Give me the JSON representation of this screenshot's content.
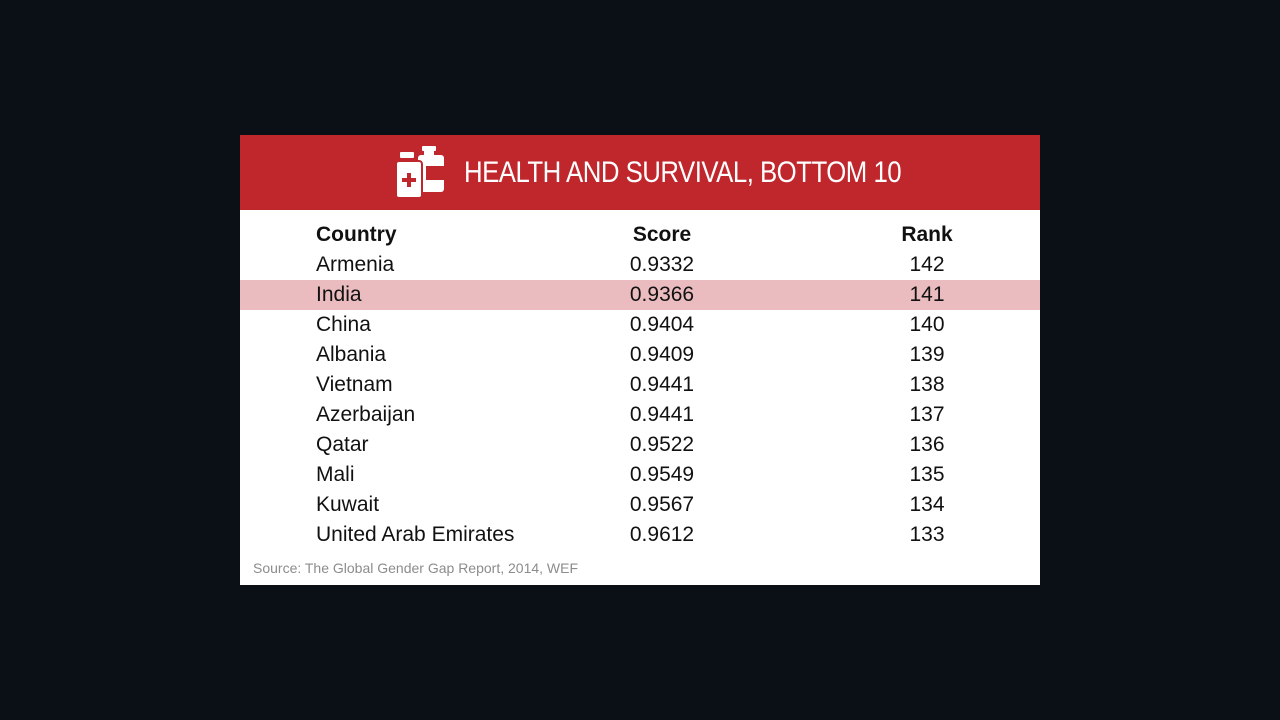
{
  "header": {
    "title": "HEALTH AND SURVIVAL, BOTTOM 10",
    "icon": "medicine-bottles-icon",
    "color": "#c0272d"
  },
  "table": {
    "columns": [
      "Country",
      "Score",
      "Rank"
    ],
    "rows": [
      {
        "country": "Armenia",
        "score": "0.9332",
        "rank": "142"
      },
      {
        "country": "India",
        "score": "0.9366",
        "rank": "141"
      },
      {
        "country": "China",
        "score": "0.9404",
        "rank": "140"
      },
      {
        "country": "Albania",
        "score": "0.9409",
        "rank": "139"
      },
      {
        "country": "Vietnam",
        "score": "0.9441",
        "rank": "138"
      },
      {
        "country": "Azerbaijan",
        "score": "0.9441",
        "rank": "137"
      },
      {
        "country": "Qatar",
        "score": "0.9522",
        "rank": "136"
      },
      {
        "country": "Mali",
        "score": "0.9549",
        "rank": "135"
      },
      {
        "country": "Kuwait",
        "score": "0.9567",
        "rank": "134"
      },
      {
        "country": "United Arab Emirates",
        "score": "0.9612",
        "rank": "133"
      }
    ],
    "highlighted_country": "India",
    "highlight_color": "#ebbcbf"
  },
  "source": "Source: The Global Gender Gap Report, 2014, WEF",
  "chart_data": {
    "type": "table",
    "title": "HEALTH AND SURVIVAL, BOTTOM 10",
    "columns": [
      "Country",
      "Score",
      "Rank"
    ],
    "rows": [
      [
        "Armenia",
        0.9332,
        142
      ],
      [
        "India",
        0.9366,
        141
      ],
      [
        "China",
        0.9404,
        140
      ],
      [
        "Albania",
        0.9409,
        139
      ],
      [
        "Vietnam",
        0.9441,
        138
      ],
      [
        "Azerbaijan",
        0.9441,
        137
      ],
      [
        "Qatar",
        0.9522,
        136
      ],
      [
        "Mali",
        0.9549,
        135
      ],
      [
        "Kuwait",
        0.9567,
        134
      ],
      [
        "United Arab Emirates",
        0.9612,
        133
      ]
    ]
  }
}
